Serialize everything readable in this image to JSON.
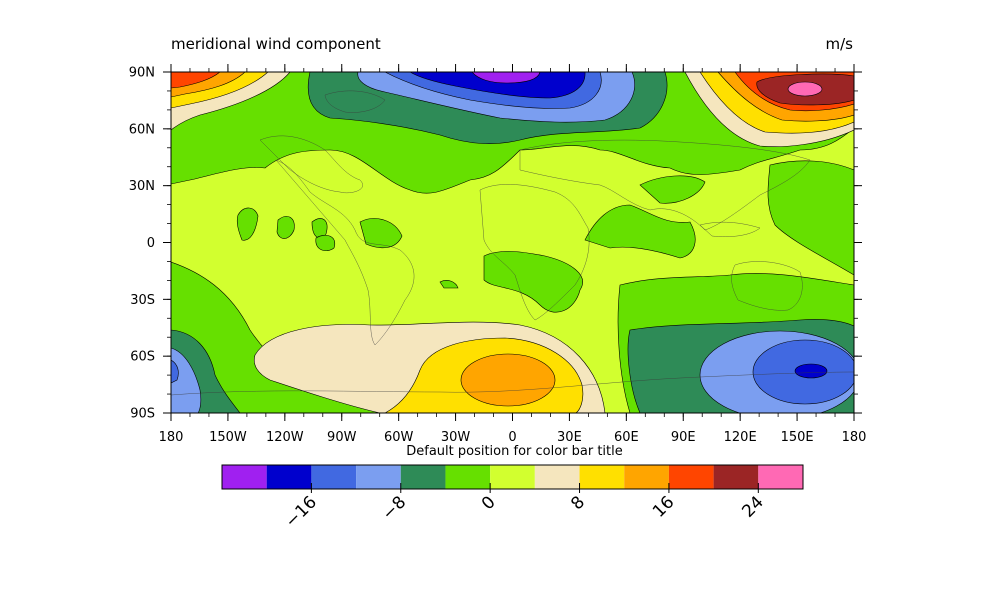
{
  "chart_data": {
    "type": "heatmap",
    "title": "meridional wind component",
    "units": "m/s",
    "x_ticks": [
      "180",
      "150W",
      "120W",
      "90W",
      "60W",
      "30W",
      "0",
      "30E",
      "60E",
      "90E",
      "120E",
      "150E",
      "180"
    ],
    "y_ticks": [
      "90N",
      "60N",
      "30N",
      "0",
      "30S",
      "60S",
      "90S"
    ],
    "xlim": [
      -180,
      180
    ],
    "ylim": [
      -90,
      90
    ],
    "colorbar": {
      "title": "Default position for color bar title",
      "levels": [
        -20,
        -16,
        -12,
        -8,
        -4,
        0,
        4,
        8,
        12,
        16,
        20,
        24
      ],
      "colors": [
        "#A020F0",
        "#0000CD",
        "#4169E1",
        "#7B9EF0",
        "#2E8B57",
        "#66E000",
        "#D2FF2F",
        "#F5E6BE",
        "#FFE000",
        "#FFA500",
        "#FF4500",
        "#9B2525",
        "#FF69B4"
      ],
      "tick_labels": [
        "−16",
        "−8",
        "0",
        "8",
        "16",
        "24"
      ],
      "tick_values": [
        -16,
        -8,
        0,
        8,
        16,
        24
      ]
    }
  }
}
